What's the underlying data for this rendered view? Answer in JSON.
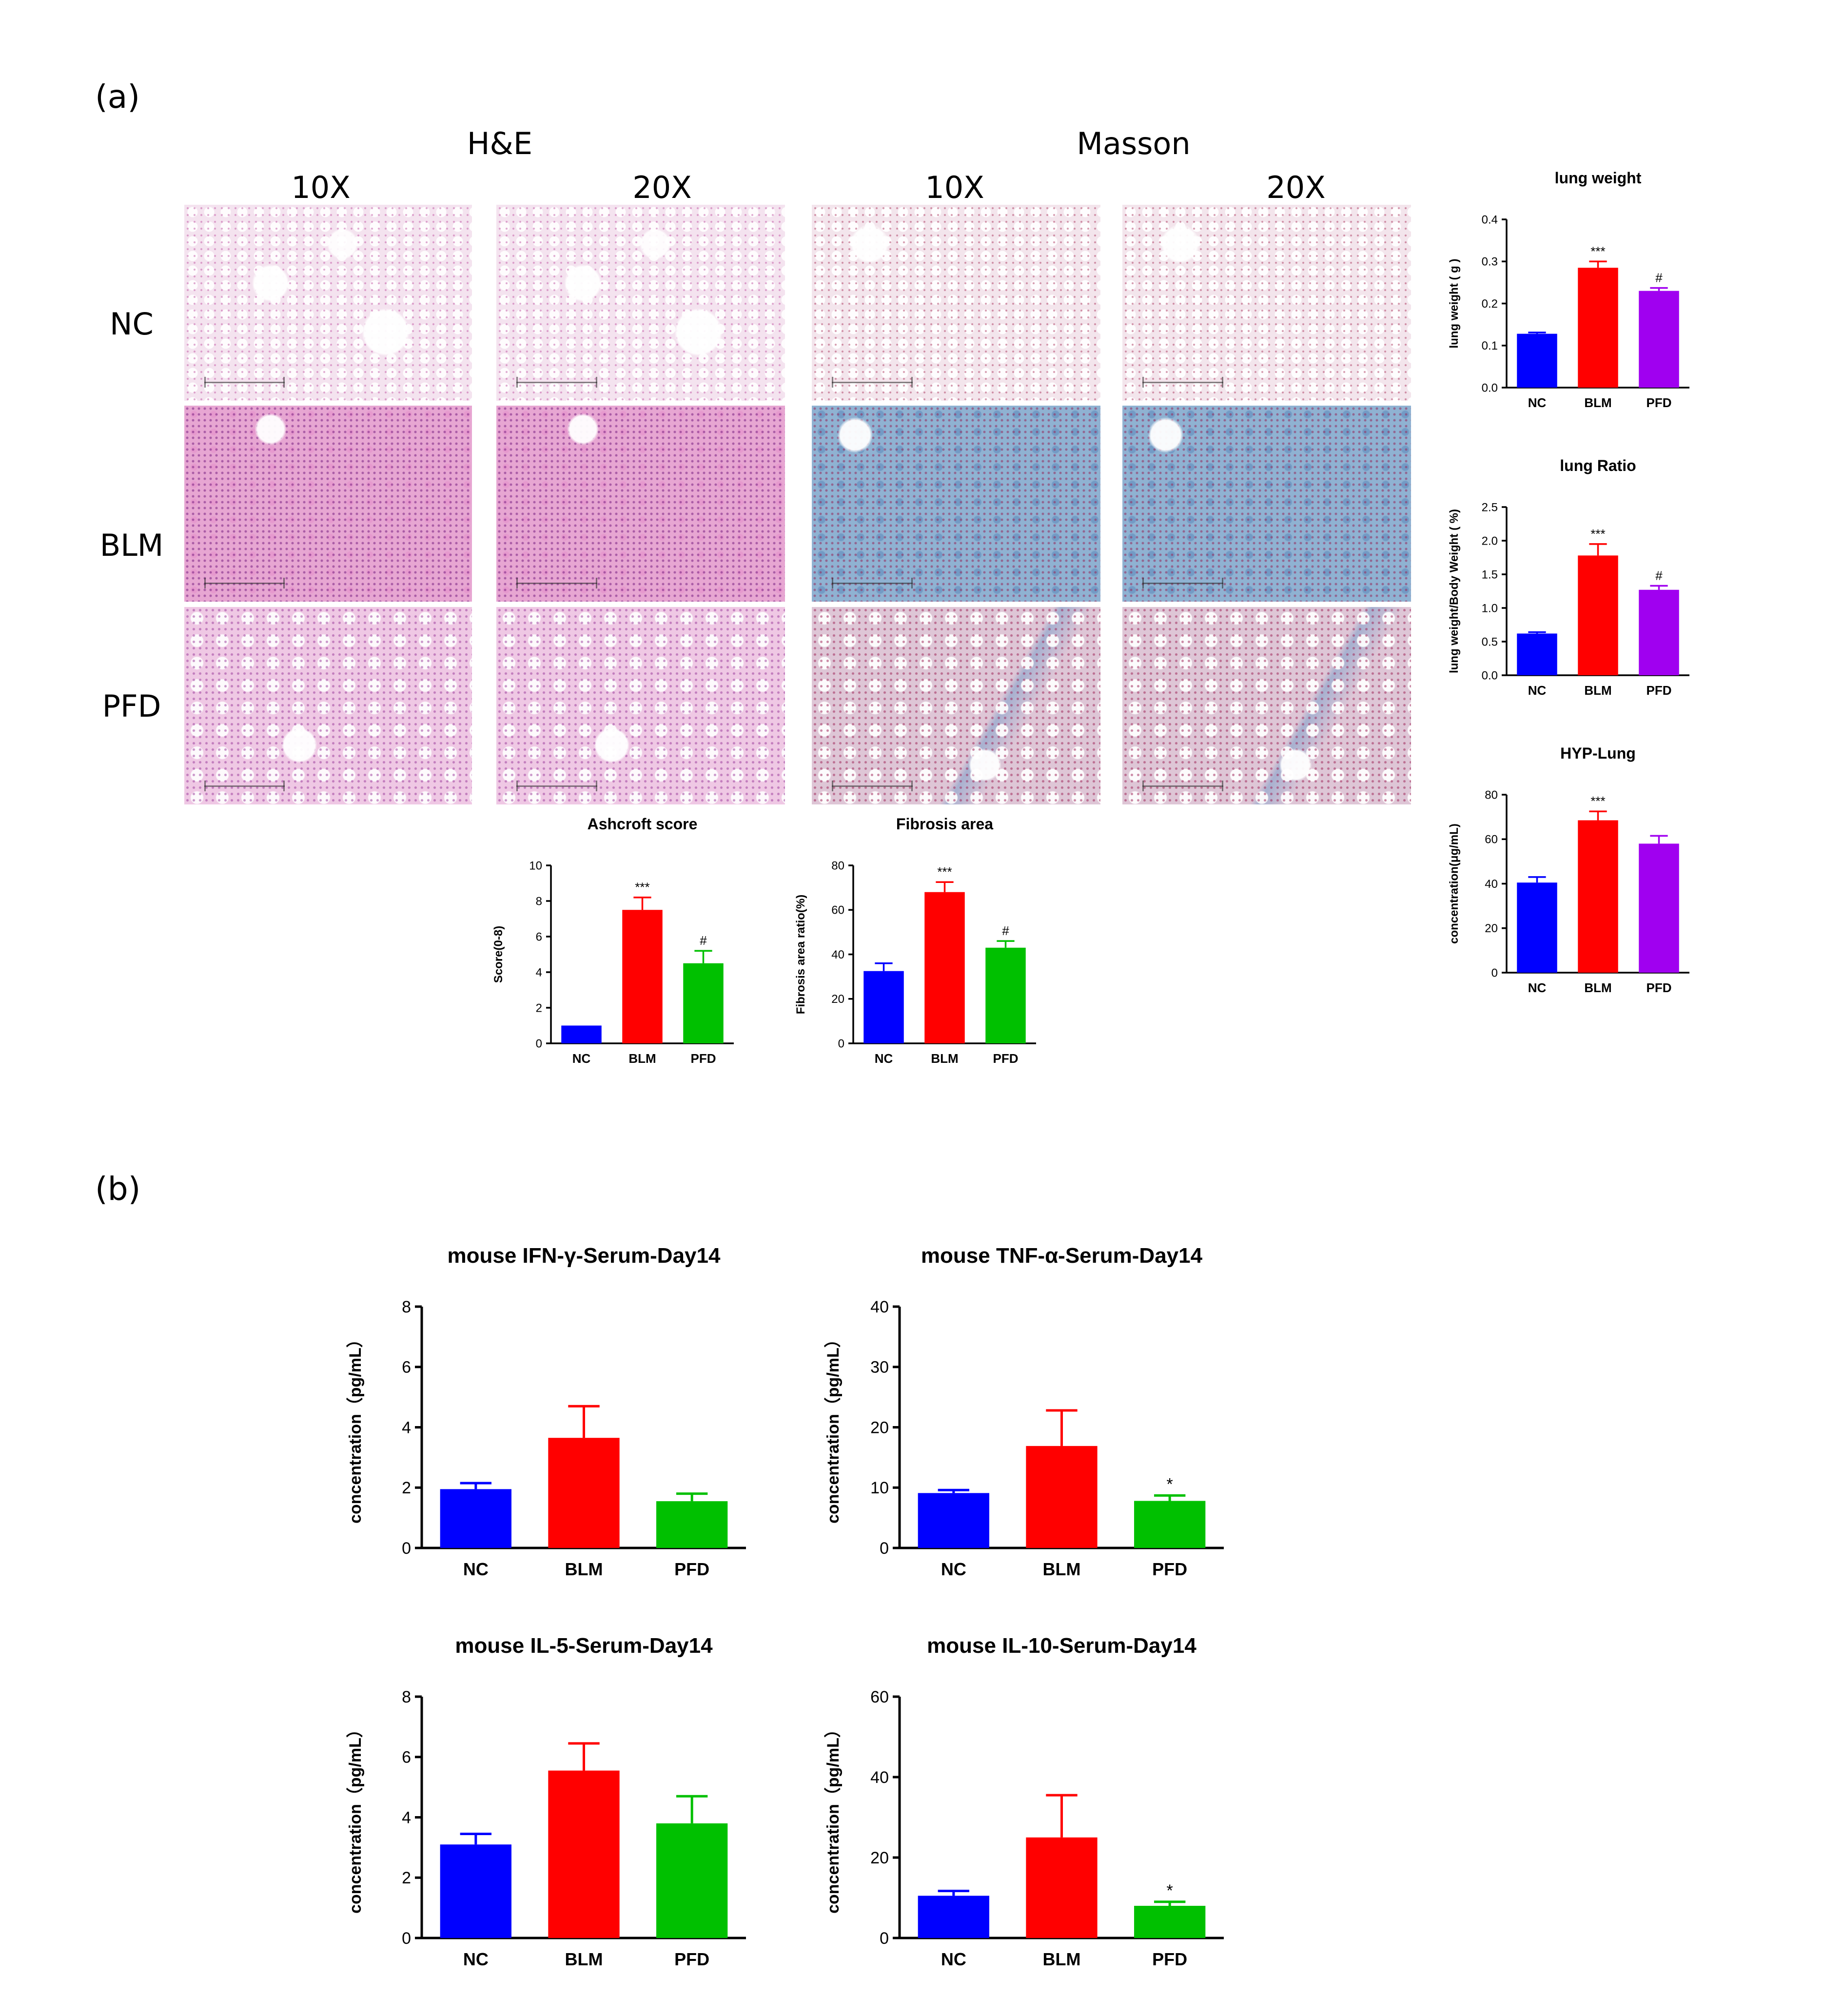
{
  "panels": {
    "a": "(a)",
    "b": "(b)"
  },
  "histology": {
    "stains": [
      "H&E",
      "Masson"
    ],
    "magnifications": [
      "10X",
      "20X",
      "10X",
      "20X"
    ],
    "rows": [
      "NC",
      "BLM",
      "PFD"
    ]
  },
  "chart_data": [
    {
      "id": "ashcroft",
      "type": "bar",
      "title": "Ashcroft score",
      "xlabel": "",
      "ylabel": "Score(0-8)",
      "categories": [
        "NC",
        "BLM",
        "PFD"
      ],
      "values": [
        1.0,
        7.5,
        4.5
      ],
      "errors": [
        0,
        0.7,
        0.7
      ],
      "ylim": [
        0,
        10
      ],
      "yticks": [
        0,
        2,
        4,
        6,
        8,
        10
      ],
      "annotations": [
        "",
        "***",
        "#"
      ],
      "colors": [
        "#0000ff",
        "#ff0000",
        "#00c000"
      ]
    },
    {
      "id": "fibrosis",
      "type": "bar",
      "title": "Fibrosis area",
      "xlabel": "",
      "ylabel": "Fibrosis area ratio(%)",
      "categories": [
        "NC",
        "BLM",
        "PFD"
      ],
      "values": [
        32.5,
        68.0,
        43.0
      ],
      "errors": [
        3.5,
        4.5,
        3.0
      ],
      "ylim": [
        0,
        80
      ],
      "yticks": [
        0,
        20,
        40,
        60,
        80
      ],
      "annotations": [
        "",
        "***",
        "#"
      ],
      "colors": [
        "#0000ff",
        "#ff0000",
        "#00c000"
      ]
    },
    {
      "id": "lung-weight",
      "type": "bar",
      "title": "lung weight",
      "xlabel": "",
      "ylabel": "lung weight ( g )",
      "categories": [
        "NC",
        "BLM",
        "PFD"
      ],
      "values": [
        0.128,
        0.285,
        0.23
      ],
      "errors": [
        0.003,
        0.015,
        0.007
      ],
      "ylim": [
        0,
        0.4
      ],
      "yticks": [
        0.0,
        0.1,
        0.2,
        0.3,
        0.4
      ],
      "tick_decimals": 1,
      "annotations": [
        "",
        "***",
        "#"
      ],
      "colors": [
        "#0000ff",
        "#ff0000",
        "#a000f0"
      ]
    },
    {
      "id": "lung-ratio",
      "type": "bar",
      "title": "lung Ratio",
      "xlabel": "",
      "ylabel": "lung weight/Body Weight ( %)",
      "categories": [
        "NC",
        "BLM",
        "PFD"
      ],
      "values": [
        0.62,
        1.78,
        1.27
      ],
      "errors": [
        0.02,
        0.17,
        0.06
      ],
      "ylim": [
        0,
        2.5
      ],
      "yticks": [
        0.0,
        0.5,
        1.0,
        1.5,
        2.0,
        2.5
      ],
      "tick_decimals": 1,
      "annotations": [
        "",
        "***",
        "#"
      ],
      "colors": [
        "#0000ff",
        "#ff0000",
        "#a000f0"
      ]
    },
    {
      "id": "hyp-lung",
      "type": "bar",
      "title": "HYP-Lung",
      "xlabel": "",
      "ylabel": "concentration(μg/mL)",
      "categories": [
        "NC",
        "BLM",
        "PFD"
      ],
      "values": [
        40.5,
        68.5,
        58.0
      ],
      "errors": [
        2.5,
        4.0,
        3.5
      ],
      "ylim": [
        0,
        80
      ],
      "yticks": [
        0,
        20,
        40,
        60,
        80
      ],
      "annotations": [
        "",
        "***",
        ""
      ],
      "colors": [
        "#0000ff",
        "#ff0000",
        "#a000f0"
      ]
    },
    {
      "id": "ifn-gamma",
      "type": "bar",
      "title": "mouse IFN-γ-Serum-Day14",
      "xlabel": "",
      "ylabel": "concentration（pg/mL）",
      "categories": [
        "NC",
        "BLM",
        "PFD"
      ],
      "values": [
        1.95,
        3.65,
        1.55
      ],
      "errors": [
        0.2,
        1.05,
        0.25
      ],
      "ylim": [
        0,
        8
      ],
      "yticks": [
        0,
        2,
        4,
        6,
        8
      ],
      "annotations": [
        "",
        "",
        ""
      ],
      "colors": [
        "#0000ff",
        "#ff0000",
        "#00c000"
      ]
    },
    {
      "id": "tnf-alpha",
      "type": "bar",
      "title": "mouse TNF-α-Serum-Day14",
      "xlabel": "",
      "ylabel": "concentration（pg/mL）",
      "categories": [
        "NC",
        "BLM",
        "PFD"
      ],
      "values": [
        9.1,
        16.9,
        7.8
      ],
      "errors": [
        0.5,
        5.9,
        0.9
      ],
      "ylim": [
        0,
        40
      ],
      "yticks": [
        0,
        10,
        20,
        30,
        40
      ],
      "annotations": [
        "",
        "",
        "*"
      ],
      "colors": [
        "#0000ff",
        "#ff0000",
        "#00c000"
      ]
    },
    {
      "id": "il-5",
      "type": "bar",
      "title": "mouse IL-5-Serum-Day14",
      "xlabel": "",
      "ylabel": "concentration（pg/mL）",
      "categories": [
        "NC",
        "BLM",
        "PFD"
      ],
      "values": [
        3.1,
        5.55,
        3.8
      ],
      "errors": [
        0.35,
        0.9,
        0.9
      ],
      "ylim": [
        0,
        8
      ],
      "yticks": [
        0,
        2,
        4,
        6,
        8
      ],
      "annotations": [
        "",
        "",
        ""
      ],
      "colors": [
        "#0000ff",
        "#ff0000",
        "#00c000"
      ]
    },
    {
      "id": "il-10",
      "type": "bar",
      "title": "mouse IL-10-Serum-Day14",
      "xlabel": "",
      "ylabel": "concentration（pg/mL）",
      "categories": [
        "NC",
        "BLM",
        "PFD"
      ],
      "values": [
        10.5,
        25.0,
        8.0
      ],
      "errors": [
        1.2,
        10.5,
        1.0
      ],
      "ylim": [
        0,
        60
      ],
      "yticks": [
        0,
        20,
        40,
        60
      ],
      "annotations": [
        "",
        "",
        "*"
      ],
      "colors": [
        "#0000ff",
        "#ff0000",
        "#00c000"
      ]
    }
  ]
}
